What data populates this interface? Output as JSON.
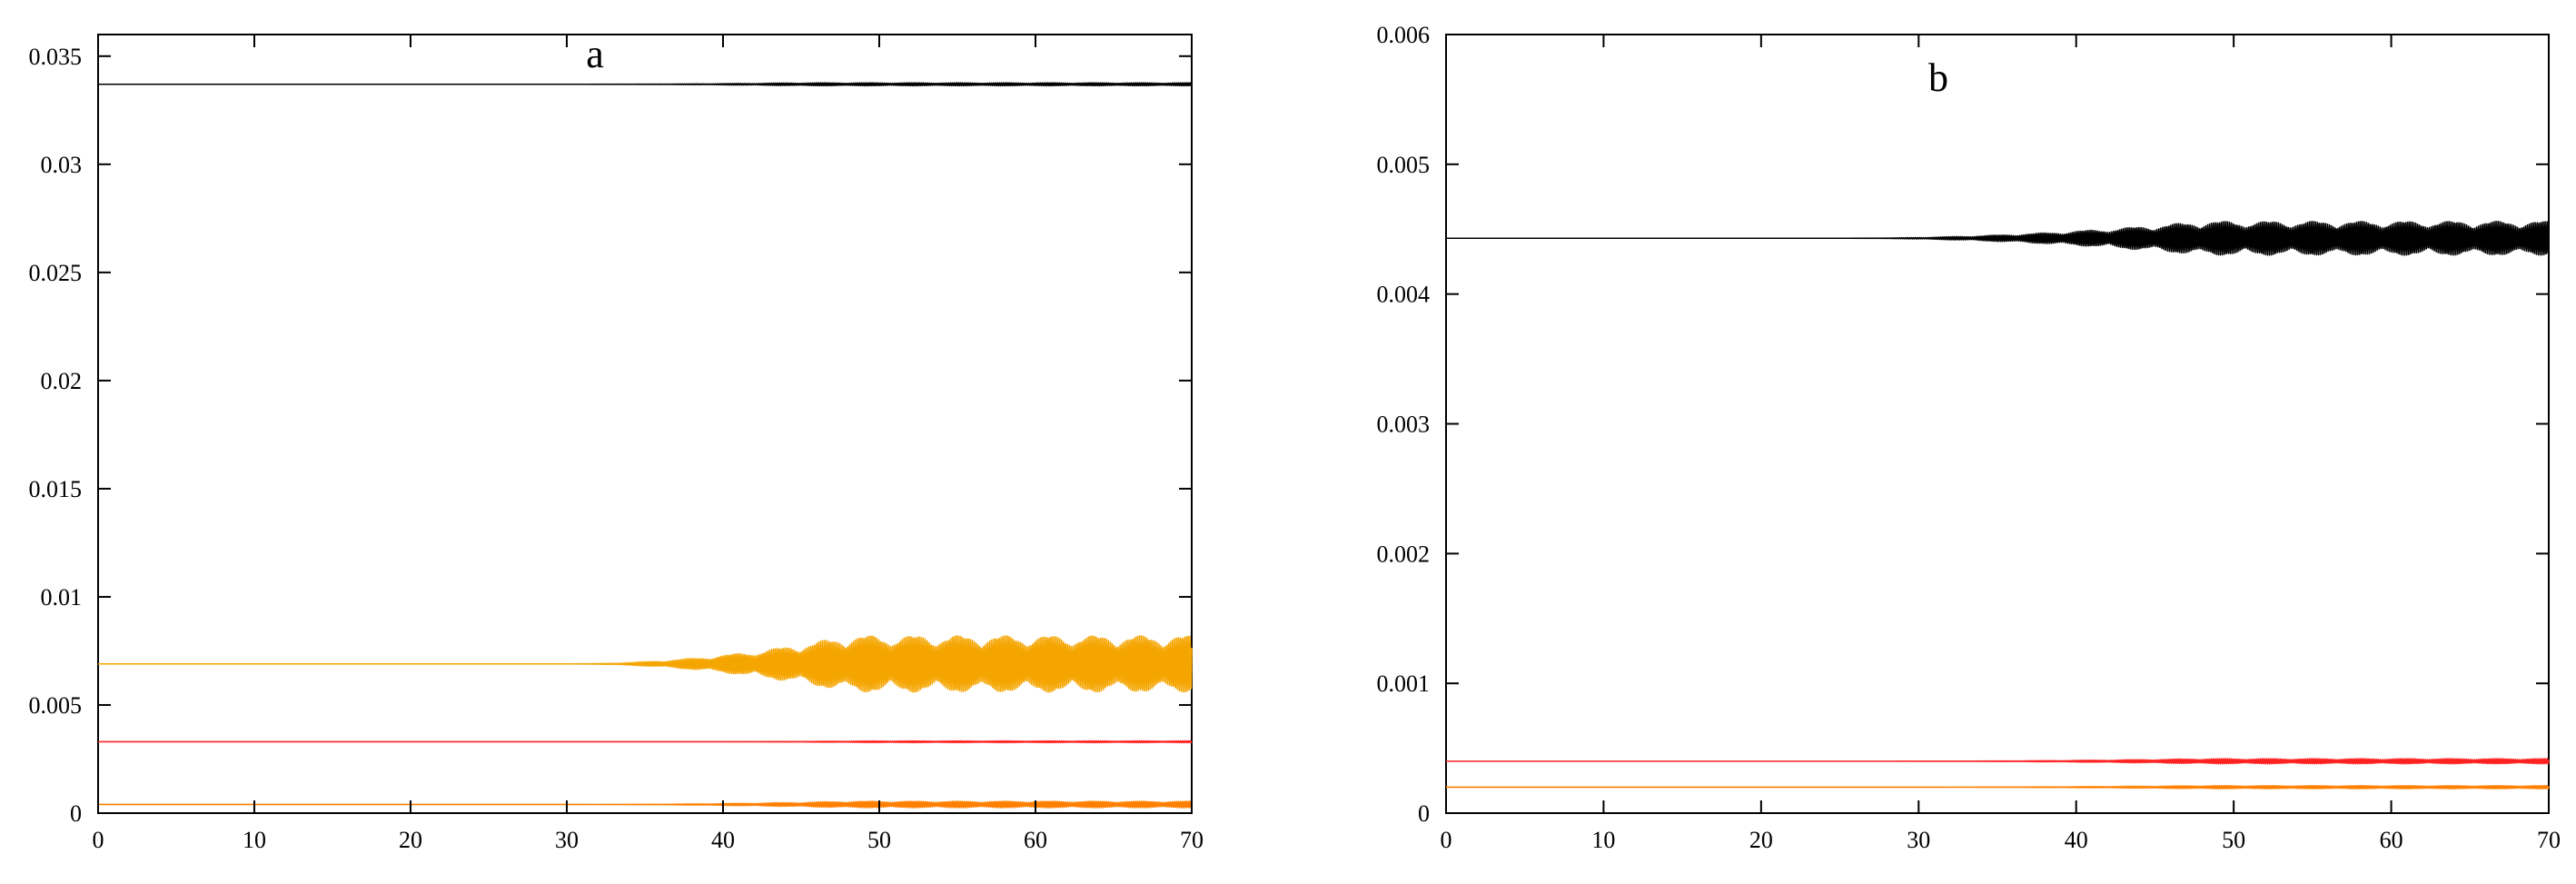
{
  "chart_data": [
    {
      "type": "line",
      "panel_label": "a",
      "xlim": [
        0,
        70
      ],
      "ylim": [
        0,
        0.036
      ],
      "x_ticks": [
        0,
        10,
        20,
        30,
        40,
        50,
        60,
        70
      ],
      "x_tick_labels": [
        "0",
        "10",
        "20",
        "30",
        "40",
        "50",
        "60",
        "70"
      ],
      "y_ticks": [
        0,
        0.005,
        0.01,
        0.015,
        0.02,
        0.025,
        0.03,
        0.035
      ],
      "y_tick_labels": [
        "0",
        "0.005",
        "0.01",
        "0.015",
        "0.02",
        "0.025",
        "0.03",
        "0.035"
      ],
      "grid": false,
      "series": [
        {
          "color": "#000000",
          "base": 0.0337,
          "onset": 30,
          "growth_end": 45,
          "amplitude": 7e-05
        },
        {
          "color": "#f5a500",
          "base": 0.0069,
          "onset": 30,
          "growth_end": 48,
          "amplitude": 0.0013
        },
        {
          "color": "#ff2020",
          "base": 0.0033,
          "onset": 36,
          "growth_end": 50,
          "amplitude": 4e-05
        },
        {
          "color": "#ff7f00",
          "base": 0.0004,
          "onset": 30,
          "growth_end": 48,
          "amplitude": 0.00015
        }
      ]
    },
    {
      "type": "line",
      "panel_label": "b",
      "xlim": [
        0,
        70
      ],
      "ylim": [
        0,
        0.006
      ],
      "x_ticks": [
        0,
        10,
        20,
        30,
        40,
        50,
        60,
        70
      ],
      "x_tick_labels": [
        "0",
        "10",
        "20",
        "30",
        "40",
        "50",
        "60",
        "70"
      ],
      "y_ticks": [
        0,
        0.001,
        0.002,
        0.003,
        0.004,
        0.005,
        0.006
      ],
      "y_tick_labels": [
        "0",
        "0.001",
        "0.002",
        "0.003",
        "0.004",
        "0.005",
        "0.006"
      ],
      "grid": false,
      "series": [
        {
          "color": "#000000",
          "base": 0.00443,
          "onset": 25,
          "growth_end": 48,
          "amplitude": 0.00013
        },
        {
          "color": "#ff2020",
          "base": 0.0004,
          "onset": 28,
          "growth_end": 48,
          "amplitude": 2e-05
        },
        {
          "color": "#ff7f00",
          "base": 0.0002,
          "onset": 28,
          "growth_end": 48,
          "amplitude": 1.2e-05
        }
      ]
    }
  ]
}
